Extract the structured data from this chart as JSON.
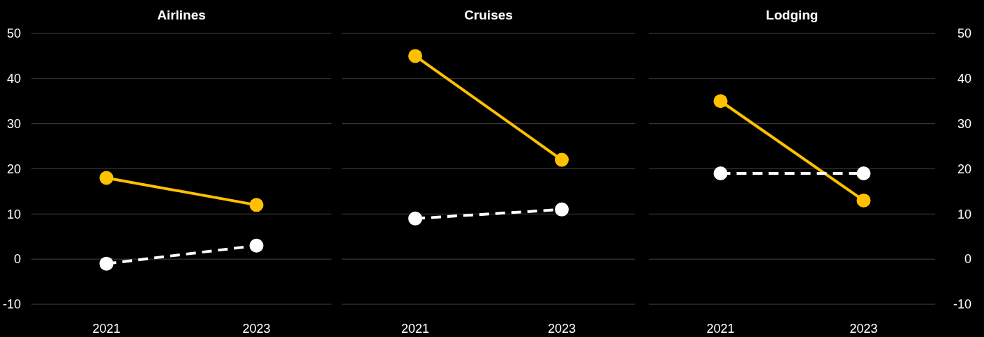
{
  "chart_data": [
    {
      "type": "line",
      "title": "Airlines",
      "categories": [
        "2021",
        "2023"
      ],
      "ylim": [
        -10,
        50
      ],
      "yticks": [
        -10,
        0,
        10,
        20,
        30,
        40,
        50
      ],
      "grid": "y",
      "marker": "circle",
      "series": [
        {
          "color": "#ffc000",
          "values": [
            18,
            12
          ],
          "line_style": "solid"
        },
        {
          "color": "#ffffff",
          "values": [
            -1,
            3
          ],
          "line_style": "dashed"
        }
      ]
    },
    {
      "type": "line",
      "title": "Cruises",
      "categories": [
        "2021",
        "2023"
      ],
      "ylim": [
        -10,
        50
      ],
      "yticks": [
        -10,
        0,
        10,
        20,
        30,
        40,
        50
      ],
      "grid": "y",
      "marker": "circle",
      "tick_labels": "x",
      "series": [
        {
          "color": "#ffc000",
          "values": [
            45,
            22
          ],
          "line_style": "solid"
        },
        {
          "color": "#ffffff",
          "values": [
            9,
            11
          ],
          "line_style": "dashed"
        }
      ]
    },
    {
      "type": "line",
      "title": "Lodging",
      "categories": [
        "2021",
        "2023"
      ],
      "ylim": [
        -10,
        50
      ],
      "yticks": [
        -10,
        0,
        10,
        20,
        30,
        40,
        50
      ],
      "grid": "y",
      "marker": "circle",
      "series": [
        {
          "color": "#ffc000",
          "values": [
            35,
            13
          ],
          "line_style": "solid"
        },
        {
          "color": "#ffffff",
          "values": [
            19,
            19
          ],
          "line_style": "dashed"
        }
      ]
    }
  ]
}
